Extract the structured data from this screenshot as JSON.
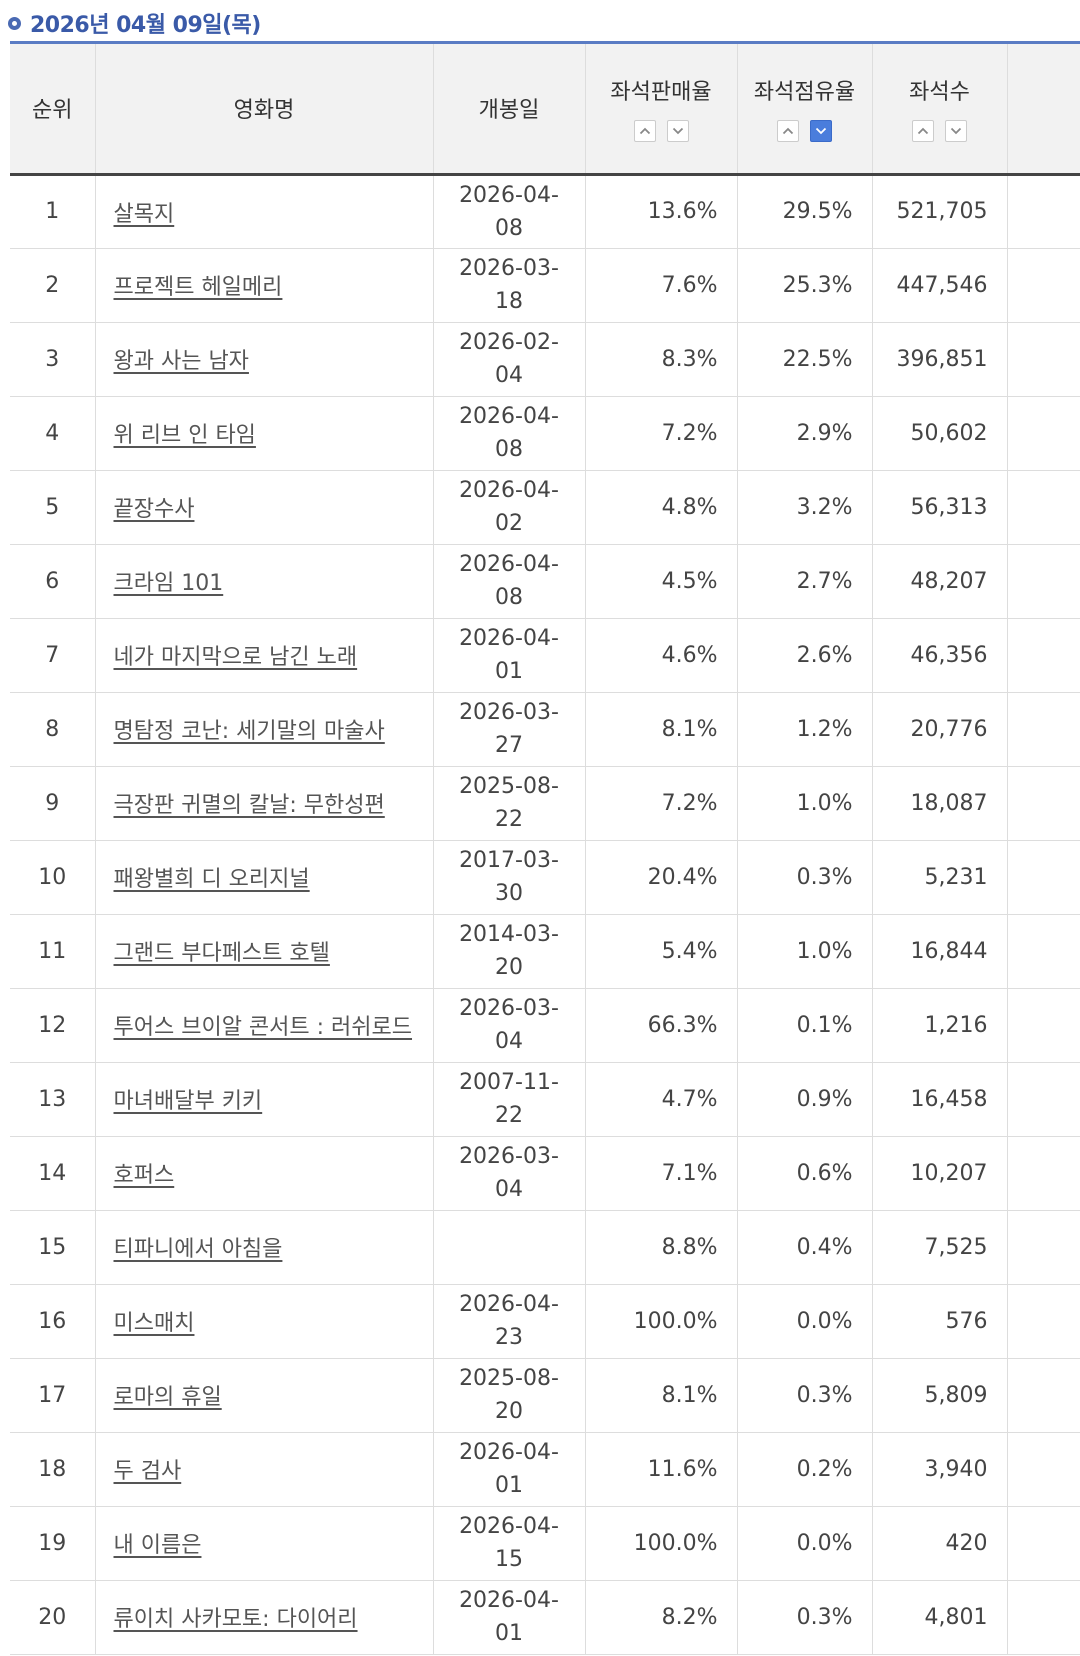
{
  "date_header": "2026년 04월 09일(목)",
  "columns": {
    "rank": "순위",
    "title": "영화명",
    "release_date": "개봉일",
    "seat_sales_rate": "좌석판매율",
    "seat_share_rate": "좌석점유율",
    "seat_count": "좌석수"
  },
  "sort_state": {
    "seat_share_rate": "desc"
  },
  "colors": {
    "accent": "#4a7ddc",
    "header_text": "#3a5aa8"
  },
  "icons": [
    "circle-bullet-icon",
    "sort-up-icon",
    "sort-down-icon"
  ],
  "rows": [
    {
      "rank": "1",
      "title": "살목지",
      "release_date": "2026-04-08",
      "seat_sales_rate": "13.6%",
      "seat_share_rate": "29.5%",
      "seat_count": "521,705"
    },
    {
      "rank": "2",
      "title": "프로젝트 헤일메리",
      "release_date": "2026-03-18",
      "seat_sales_rate": "7.6%",
      "seat_share_rate": "25.3%",
      "seat_count": "447,546"
    },
    {
      "rank": "3",
      "title": "왕과 사는 남자",
      "release_date": "2026-02-04",
      "seat_sales_rate": "8.3%",
      "seat_share_rate": "22.5%",
      "seat_count": "396,851"
    },
    {
      "rank": "4",
      "title": "위 리브 인 타임",
      "release_date": "2026-04-08",
      "seat_sales_rate": "7.2%",
      "seat_share_rate": "2.9%",
      "seat_count": "50,602"
    },
    {
      "rank": "5",
      "title": "끝장수사",
      "release_date": "2026-04-02",
      "seat_sales_rate": "4.8%",
      "seat_share_rate": "3.2%",
      "seat_count": "56,313"
    },
    {
      "rank": "6",
      "title": "크라임 101",
      "release_date": "2026-04-08",
      "seat_sales_rate": "4.5%",
      "seat_share_rate": "2.7%",
      "seat_count": "48,207"
    },
    {
      "rank": "7",
      "title": "네가 마지막으로 남긴 노래",
      "release_date": "2026-04-01",
      "seat_sales_rate": "4.6%",
      "seat_share_rate": "2.6%",
      "seat_count": "46,356"
    },
    {
      "rank": "8",
      "title": "명탐정 코난: 세기말의 마술사",
      "release_date": "2026-03-27",
      "seat_sales_rate": "8.1%",
      "seat_share_rate": "1.2%",
      "seat_count": "20,776"
    },
    {
      "rank": "9",
      "title": "극장판 귀멸의 칼날: 무한성편",
      "release_date": "2025-08-22",
      "seat_sales_rate": "7.2%",
      "seat_share_rate": "1.0%",
      "seat_count": "18,087"
    },
    {
      "rank": "10",
      "title": "패왕별희 디 오리지널",
      "release_date": "2017-03-30",
      "seat_sales_rate": "20.4%",
      "seat_share_rate": "0.3%",
      "seat_count": "5,231"
    },
    {
      "rank": "11",
      "title": "그랜드 부다페스트 호텔",
      "release_date": "2014-03-20",
      "seat_sales_rate": "5.4%",
      "seat_share_rate": "1.0%",
      "seat_count": "16,844"
    },
    {
      "rank": "12",
      "title": "투어스 브이알 콘서트 : 러쉬로드",
      "release_date": "2026-03-04",
      "seat_sales_rate": "66.3%",
      "seat_share_rate": "0.1%",
      "seat_count": "1,216"
    },
    {
      "rank": "13",
      "title": "마녀배달부 키키",
      "release_date": "2007-11-22",
      "seat_sales_rate": "4.7%",
      "seat_share_rate": "0.9%",
      "seat_count": "16,458"
    },
    {
      "rank": "14",
      "title": "호퍼스",
      "release_date": "2026-03-04",
      "seat_sales_rate": "7.1%",
      "seat_share_rate": "0.6%",
      "seat_count": "10,207"
    },
    {
      "rank": "15",
      "title": "티파니에서 아침을",
      "release_date": "",
      "seat_sales_rate": "8.8%",
      "seat_share_rate": "0.4%",
      "seat_count": "7,525"
    },
    {
      "rank": "16",
      "title": "미스매치",
      "release_date": "2026-04-23",
      "seat_sales_rate": "100.0%",
      "seat_share_rate": "0.0%",
      "seat_count": "576"
    },
    {
      "rank": "17",
      "title": "로마의 휴일",
      "release_date": "2025-08-20",
      "seat_sales_rate": "8.1%",
      "seat_share_rate": "0.3%",
      "seat_count": "5,809"
    },
    {
      "rank": "18",
      "title": "두 검사",
      "release_date": "2026-04-01",
      "seat_sales_rate": "11.6%",
      "seat_share_rate": "0.2%",
      "seat_count": "3,940"
    },
    {
      "rank": "19",
      "title": "내 이름은",
      "release_date": "2026-04-15",
      "seat_sales_rate": "100.0%",
      "seat_share_rate": "0.0%",
      "seat_count": "420"
    },
    {
      "rank": "20",
      "title": "류이치 사카모토: 다이어리",
      "release_date": "2026-04-01",
      "seat_sales_rate": "8.2%",
      "seat_share_rate": "0.3%",
      "seat_count": "4,801"
    }
  ]
}
